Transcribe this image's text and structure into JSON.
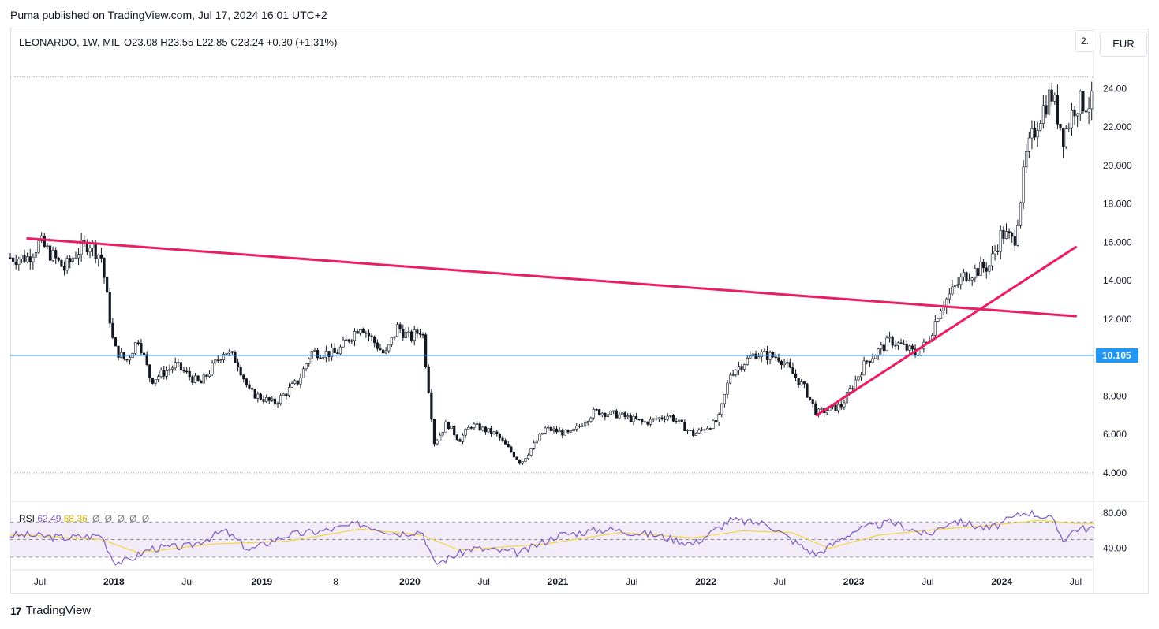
{
  "publisher_line": "Puma published on TradingView.com, Jul 17, 2024 16:01 UTC+2",
  "legend": {
    "symbol": "LEONARDO, 1W, MIL",
    "open": "O23.08",
    "high": "H23.55",
    "low": "L22.85",
    "close": "C23.24",
    "change": "+0.30 (+1.31%)"
  },
  "currency_button": "EUR",
  "scale_button": "2.",
  "rsi_legend": {
    "label": "RSI",
    "rsi": "62.49",
    "ma": "68.36",
    "extra": [
      "Ø",
      "Ø",
      "Ø",
      "Ø",
      "Ø"
    ]
  },
  "brand": {
    "logo": "17",
    "name": "TradingView"
  },
  "colors": {
    "up": "#26a69a",
    "down": "#131722",
    "trendline": "#e91e63",
    "hline": "#2196f3",
    "rsi": "#7e57c2",
    "rsi_ma": "#f5d442",
    "rsi_band": "#ede7f6"
  },
  "chart_data": {
    "type": "candlestick",
    "interval": "1W",
    "ylim": [
      3.5,
      25.0
    ],
    "y_ticks": [
      "4.000",
      "6.000",
      "8.000",
      "10.000",
      "12.000",
      "14.000",
      "16.000",
      "18.000",
      "20.000",
      "22.000",
      "24.00"
    ],
    "x_ticks": [
      "Jul",
      "2018",
      "Jul",
      "2019",
      "8",
      "2020",
      "Jul",
      "2021",
      "Jul",
      "2022",
      "Jul",
      "2023",
      "Jul",
      "2024",
      "Jul"
    ],
    "last_price_label": "10.105",
    "hline_value": 10.105,
    "dotted_levels": [
      24.6,
      4.0
    ],
    "trendlines": [
      {
        "name": "descending resistance",
        "points": [
          [
            "2017-06",
            16.2
          ],
          [
            "2024-07",
            12.15
          ]
        ]
      },
      {
        "name": "ascending support",
        "points": [
          [
            "2022-10",
            7.0
          ],
          [
            "2024-07",
            15.75
          ]
        ]
      }
    ],
    "close_path": [
      [
        "2017-06",
        15.2
      ],
      [
        "2017-07",
        16.0
      ],
      [
        "2017-09",
        14.6
      ],
      [
        "2017-10",
        15.5
      ],
      [
        "2017-11",
        16.0
      ],
      [
        "2017-12",
        15.2
      ],
      [
        "2018-01",
        10.5
      ],
      [
        "2018-02",
        9.8
      ],
      [
        "2018-03",
        11.0
      ],
      [
        "2018-04",
        8.8
      ],
      [
        "2018-06",
        9.6
      ],
      [
        "2018-08",
        8.6
      ],
      [
        "2018-10",
        10.4
      ],
      [
        "2018-11",
        9.8
      ],
      [
        "2018-12",
        8.2
      ],
      [
        "2019-02",
        7.6
      ],
      [
        "2019-04",
        8.8
      ],
      [
        "2019-05",
        10.3
      ],
      [
        "2019-07",
        10.2
      ],
      [
        "2019-09",
        11.7
      ],
      [
        "2019-11",
        10.1
      ],
      [
        "2019-12",
        11.6
      ],
      [
        "2020-01",
        11.0
      ],
      [
        "2020-02",
        11.5
      ],
      [
        "2020-03",
        5.5
      ],
      [
        "2020-04",
        6.6
      ],
      [
        "2020-05",
        5.7
      ],
      [
        "2020-06",
        6.5
      ],
      [
        "2020-08",
        6.0
      ],
      [
        "2020-10",
        4.5
      ],
      [
        "2020-12",
        6.3
      ],
      [
        "2021-02",
        6.0
      ],
      [
        "2021-04",
        7.2
      ],
      [
        "2021-06",
        7.0
      ],
      [
        "2021-08",
        6.6
      ],
      [
        "2021-10",
        7.0
      ],
      [
        "2021-12",
        6.0
      ],
      [
        "2022-02",
        6.7
      ],
      [
        "2022-03",
        9.2
      ],
      [
        "2022-05",
        10.2
      ],
      [
        "2022-07",
        10.0
      ],
      [
        "2022-09",
        8.4
      ],
      [
        "2022-10",
        7.1
      ],
      [
        "2022-12",
        7.5
      ],
      [
        "2023-02",
        9.8
      ],
      [
        "2023-04",
        10.9
      ],
      [
        "2023-06",
        10.2
      ],
      [
        "2023-07",
        10.8
      ],
      [
        "2023-08",
        12.6
      ],
      [
        "2023-10",
        14.3
      ],
      [
        "2023-12",
        14.8
      ],
      [
        "2024-01",
        16.5
      ],
      [
        "2024-02",
        16.0
      ],
      [
        "2024-03",
        20.5
      ],
      [
        "2024-04",
        22.5
      ],
      [
        "2024-05",
        23.8
      ],
      [
        "2024-06",
        21.5
      ],
      [
        "2024-07",
        23.24
      ]
    ],
    "rsi": {
      "name": "RSI",
      "ylim": [
        20,
        90
      ],
      "y_ticks": [
        "40.00",
        "80.00"
      ],
      "band": [
        30,
        70
      ],
      "mid": 50,
      "rsi_path": [
        [
          "2017-06",
          55
        ],
        [
          "2017-09",
          52
        ],
        [
          "2017-12",
          55
        ],
        [
          "2018-01",
          25
        ],
        [
          "2018-02",
          25
        ],
        [
          "2018-04",
          40
        ],
        [
          "2018-07",
          42
        ],
        [
          "2018-10",
          60
        ],
        [
          "2018-12",
          38
        ],
        [
          "2019-03",
          55
        ],
        [
          "2019-06",
          60
        ],
        [
          "2019-09",
          68
        ],
        [
          "2019-12",
          57
        ],
        [
          "2020-02",
          60
        ],
        [
          "2020-03",
          22
        ],
        [
          "2020-06",
          40
        ],
        [
          "2020-10",
          35
        ],
        [
          "2021-01",
          55
        ],
        [
          "2021-05",
          62
        ],
        [
          "2021-09",
          55
        ],
        [
          "2021-12",
          45
        ],
        [
          "2022-03",
          72
        ],
        [
          "2022-06",
          68
        ],
        [
          "2022-09",
          40
        ],
        [
          "2022-10",
          33
        ],
        [
          "2023-01",
          60
        ],
        [
          "2023-04",
          70
        ],
        [
          "2023-07",
          55
        ],
        [
          "2023-09",
          72
        ],
        [
          "2023-12",
          62
        ],
        [
          "2024-03",
          82
        ],
        [
          "2024-05",
          74
        ],
        [
          "2024-06",
          50
        ],
        [
          "2024-07",
          62.49
        ]
      ],
      "ma_path": [
        [
          "2017-06",
          55
        ],
        [
          "2017-12",
          50
        ],
        [
          "2018-03",
          35
        ],
        [
          "2018-09",
          45
        ],
        [
          "2019-03",
          48
        ],
        [
          "2019-09",
          62
        ],
        [
          "2020-02",
          55
        ],
        [
          "2020-05",
          38
        ],
        [
          "2020-12",
          45
        ],
        [
          "2021-06",
          58
        ],
        [
          "2021-12",
          52
        ],
        [
          "2022-04",
          60
        ],
        [
          "2022-08",
          58
        ],
        [
          "2022-11",
          40
        ],
        [
          "2023-03",
          55
        ],
        [
          "2023-08",
          62
        ],
        [
          "2023-12",
          66
        ],
        [
          "2024-04",
          72
        ],
        [
          "2024-07",
          68.36
        ]
      ]
    }
  }
}
